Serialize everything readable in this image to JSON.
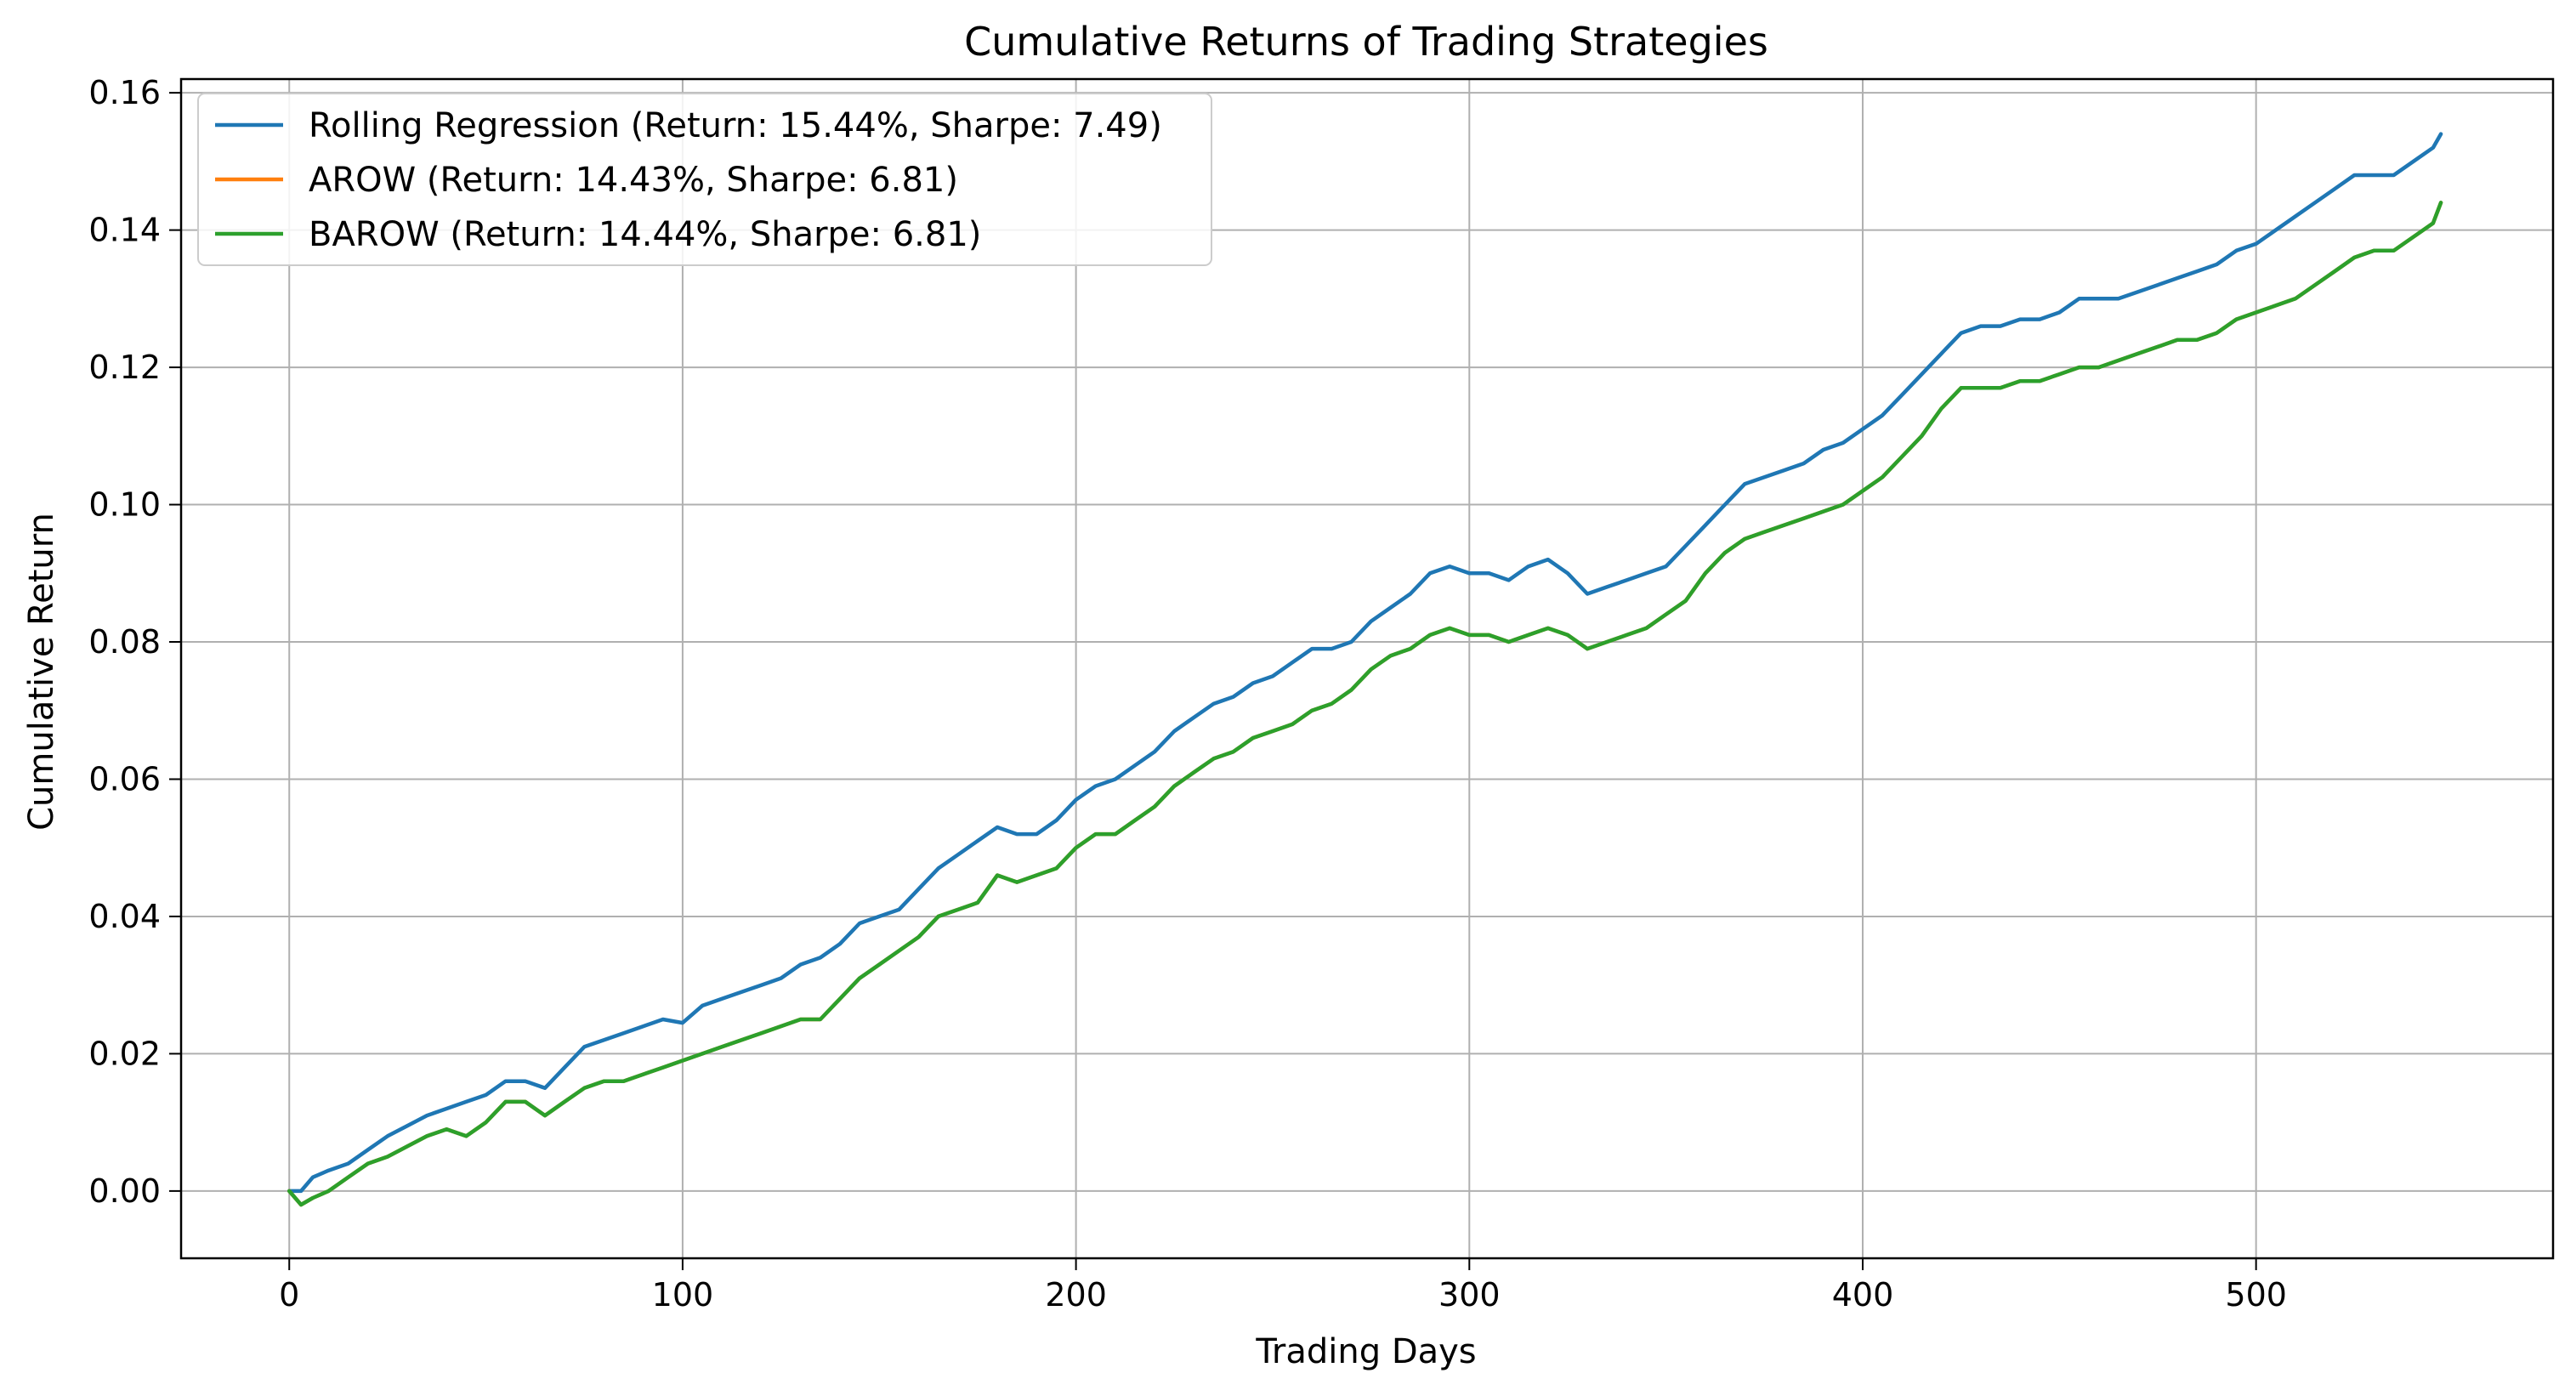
{
  "chart_data": {
    "type": "line",
    "title": "Cumulative Returns of Trading Strategies",
    "xlabel": "Trading Days",
    "ylabel": "Cumulative Return",
    "xlim": [
      -27.5,
      575.5
    ],
    "ylim": [
      -0.0098,
      0.162
    ],
    "x_ticks": [
      0,
      100,
      200,
      300,
      400,
      500
    ],
    "x_tick_labels": [
      "0",
      "100",
      "200",
      "300",
      "400",
      "500"
    ],
    "y_ticks": [
      0.0,
      0.02,
      0.04,
      0.06,
      0.08,
      0.1,
      0.12,
      0.14,
      0.16
    ],
    "y_tick_labels": [
      "0.00",
      "0.02",
      "0.04",
      "0.06",
      "0.08",
      "0.10",
      "0.12",
      "0.14",
      "0.16"
    ],
    "grid": true,
    "legend_position": "top-left",
    "series": [
      {
        "name": "Rolling Regression (Return: 15.44%, Sharpe: 7.49)",
        "color": "#1f77b4",
        "x": [
          0,
          3,
          6,
          10,
          15,
          20,
          25,
          30,
          35,
          40,
          45,
          50,
          55,
          60,
          65,
          70,
          75,
          80,
          85,
          90,
          95,
          100,
          105,
          110,
          115,
          120,
          125,
          130,
          135,
          140,
          145,
          150,
          155,
          160,
          165,
          170,
          175,
          180,
          185,
          190,
          195,
          200,
          205,
          210,
          215,
          220,
          225,
          230,
          235,
          240,
          245,
          250,
          255,
          260,
          265,
          270,
          275,
          280,
          285,
          290,
          295,
          300,
          305,
          310,
          315,
          320,
          325,
          330,
          335,
          340,
          345,
          350,
          355,
          360,
          365,
          370,
          375,
          380,
          385,
          390,
          395,
          400,
          405,
          410,
          415,
          420,
          425,
          430,
          435,
          440,
          445,
          450,
          455,
          460,
          465,
          470,
          475,
          480,
          485,
          490,
          495,
          500,
          505,
          510,
          515,
          520,
          525,
          530,
          535,
          540,
          545,
          547
        ],
        "y": [
          0.0,
          0.0,
          0.002,
          0.003,
          0.004,
          0.006,
          0.008,
          0.0095,
          0.011,
          0.012,
          0.013,
          0.014,
          0.016,
          0.016,
          0.015,
          0.018,
          0.021,
          0.022,
          0.023,
          0.024,
          0.025,
          0.0245,
          0.027,
          0.028,
          0.029,
          0.03,
          0.031,
          0.033,
          0.034,
          0.036,
          0.039,
          0.04,
          0.041,
          0.044,
          0.047,
          0.049,
          0.051,
          0.053,
          0.052,
          0.052,
          0.054,
          0.057,
          0.059,
          0.06,
          0.062,
          0.064,
          0.067,
          0.069,
          0.071,
          0.072,
          0.074,
          0.075,
          0.077,
          0.079,
          0.079,
          0.08,
          0.083,
          0.085,
          0.087,
          0.09,
          0.091,
          0.09,
          0.09,
          0.089,
          0.091,
          0.092,
          0.09,
          0.087,
          0.088,
          0.089,
          0.09,
          0.091,
          0.094,
          0.097,
          0.1,
          0.103,
          0.104,
          0.105,
          0.106,
          0.108,
          0.109,
          0.111,
          0.113,
          0.116,
          0.119,
          0.122,
          0.125,
          0.126,
          0.126,
          0.127,
          0.127,
          0.128,
          0.13,
          0.13,
          0.13,
          0.131,
          0.132,
          0.133,
          0.134,
          0.135,
          0.137,
          0.138,
          0.14,
          0.142,
          0.144,
          0.146,
          0.148,
          0.148,
          0.148,
          0.15,
          0.152,
          0.154
        ]
      },
      {
        "name": "AROW (Return: 14.43%, Sharpe: 6.81)",
        "color": "#ff7f0e",
        "x": [
          0,
          3,
          6,
          10,
          15,
          20,
          25,
          30,
          35,
          40,
          45,
          50,
          55,
          60,
          65,
          70,
          75,
          80,
          85,
          90,
          95,
          100,
          105,
          110,
          115,
          120,
          125,
          130,
          135,
          140,
          145,
          150,
          155,
          160,
          165,
          170,
          175,
          180,
          185,
          190,
          195,
          200,
          205,
          210,
          215,
          220,
          225,
          230,
          235,
          240,
          245,
          250,
          255,
          260,
          265,
          270,
          275,
          280,
          285,
          290,
          295,
          300,
          305,
          310,
          315,
          320,
          325,
          330,
          335,
          340,
          345,
          350,
          355,
          360,
          365,
          370,
          375,
          380,
          385,
          390,
          395,
          400,
          405,
          410,
          415,
          420,
          425,
          430,
          435,
          440,
          445,
          450,
          455,
          460,
          465,
          470,
          475,
          480,
          485,
          490,
          495,
          500,
          505,
          510,
          515,
          520,
          525,
          530,
          535,
          540,
          545,
          547
        ],
        "y": [
          0.0,
          -0.002,
          -0.001,
          0.0,
          0.002,
          0.004,
          0.005,
          0.0065,
          0.008,
          0.009,
          0.008,
          0.01,
          0.013,
          0.013,
          0.011,
          0.013,
          0.015,
          0.016,
          0.016,
          0.017,
          0.018,
          0.019,
          0.02,
          0.021,
          0.022,
          0.023,
          0.024,
          0.025,
          0.025,
          0.028,
          0.031,
          0.033,
          0.035,
          0.037,
          0.04,
          0.041,
          0.042,
          0.046,
          0.045,
          0.046,
          0.047,
          0.05,
          0.052,
          0.052,
          0.054,
          0.056,
          0.059,
          0.061,
          0.063,
          0.064,
          0.066,
          0.067,
          0.068,
          0.07,
          0.071,
          0.073,
          0.076,
          0.078,
          0.079,
          0.081,
          0.082,
          0.081,
          0.081,
          0.08,
          0.081,
          0.082,
          0.081,
          0.079,
          0.08,
          0.081,
          0.082,
          0.084,
          0.086,
          0.09,
          0.093,
          0.095,
          0.096,
          0.097,
          0.098,
          0.099,
          0.1,
          0.102,
          0.104,
          0.107,
          0.11,
          0.114,
          0.117,
          0.117,
          0.117,
          0.118,
          0.118,
          0.119,
          0.12,
          0.12,
          0.121,
          0.122,
          0.123,
          0.124,
          0.124,
          0.125,
          0.127,
          0.128,
          0.129,
          0.13,
          0.132,
          0.134,
          0.136,
          0.137,
          0.137,
          0.139,
          0.141,
          0.144
        ]
      },
      {
        "name": "BAROW (Return: 14.44%, Sharpe: 6.81)",
        "color": "#2ca02c",
        "x": [
          0,
          3,
          6,
          10,
          15,
          20,
          25,
          30,
          35,
          40,
          45,
          50,
          55,
          60,
          65,
          70,
          75,
          80,
          85,
          90,
          95,
          100,
          105,
          110,
          115,
          120,
          125,
          130,
          135,
          140,
          145,
          150,
          155,
          160,
          165,
          170,
          175,
          180,
          185,
          190,
          195,
          200,
          205,
          210,
          215,
          220,
          225,
          230,
          235,
          240,
          245,
          250,
          255,
          260,
          265,
          270,
          275,
          280,
          285,
          290,
          295,
          300,
          305,
          310,
          315,
          320,
          325,
          330,
          335,
          340,
          345,
          350,
          355,
          360,
          365,
          370,
          375,
          380,
          385,
          390,
          395,
          400,
          405,
          410,
          415,
          420,
          425,
          430,
          435,
          440,
          445,
          450,
          455,
          460,
          465,
          470,
          475,
          480,
          485,
          490,
          495,
          500,
          505,
          510,
          515,
          520,
          525,
          530,
          535,
          540,
          545,
          547
        ],
        "y": [
          0.0,
          -0.002,
          -0.001,
          0.0,
          0.002,
          0.004,
          0.005,
          0.0065,
          0.008,
          0.009,
          0.008,
          0.01,
          0.013,
          0.013,
          0.011,
          0.013,
          0.015,
          0.016,
          0.016,
          0.017,
          0.018,
          0.019,
          0.02,
          0.021,
          0.022,
          0.023,
          0.024,
          0.025,
          0.025,
          0.028,
          0.031,
          0.033,
          0.035,
          0.037,
          0.04,
          0.041,
          0.042,
          0.046,
          0.045,
          0.046,
          0.047,
          0.05,
          0.052,
          0.052,
          0.054,
          0.056,
          0.059,
          0.061,
          0.063,
          0.064,
          0.066,
          0.067,
          0.068,
          0.07,
          0.071,
          0.073,
          0.076,
          0.078,
          0.079,
          0.081,
          0.082,
          0.081,
          0.081,
          0.08,
          0.081,
          0.082,
          0.081,
          0.079,
          0.08,
          0.081,
          0.082,
          0.084,
          0.086,
          0.09,
          0.093,
          0.095,
          0.096,
          0.097,
          0.098,
          0.099,
          0.1,
          0.102,
          0.104,
          0.107,
          0.11,
          0.114,
          0.117,
          0.117,
          0.117,
          0.118,
          0.118,
          0.119,
          0.12,
          0.12,
          0.121,
          0.122,
          0.123,
          0.124,
          0.124,
          0.125,
          0.127,
          0.128,
          0.129,
          0.13,
          0.132,
          0.134,
          0.136,
          0.137,
          0.137,
          0.139,
          0.141,
          0.144
        ]
      }
    ]
  }
}
